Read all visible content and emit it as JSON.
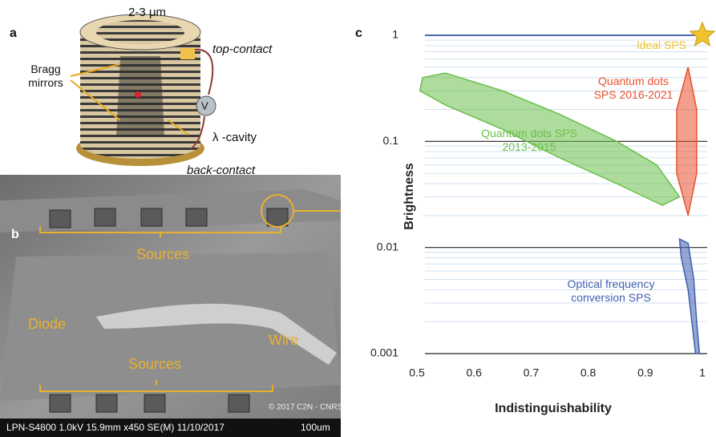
{
  "panels": {
    "a": {
      "letter": "a",
      "size": "2-3 μm",
      "top_contact": "top-contact",
      "bragg": "Bragg mirrors",
      "cavity": "λ -cavity",
      "back_contact": "back-contact",
      "voltage": "V"
    },
    "b": {
      "letter": "b",
      "sources_top": "Sources",
      "diode": "Diode",
      "wire": "Wire",
      "sources_bottom": "Sources",
      "copyright": "© 2017 C2N - CNRS",
      "info": "LPN-S4800 1.0kV 15.9mm x450 SE(M) 11/10/2017",
      "scale": "100um"
    }
  },
  "chart_data": {
    "type": "area",
    "panel_letter": "c",
    "x_label": "Indistinguishability",
    "y_label": "Brightness",
    "xlim": [
      0.5,
      1
    ],
    "xticks": [
      0.5,
      0.6,
      0.7,
      0.8,
      0.9,
      1
    ],
    "ylim": [
      0.001,
      1
    ],
    "yticks": [
      0.001,
      0.01,
      0.1,
      1
    ],
    "log_y": true,
    "grid": true,
    "minor_grid": true,
    "ideal": {
      "name": "Ideal SPS",
      "x": 1,
      "value": 1,
      "color": "#f2c12e",
      "line_color": "#4a6cb0"
    },
    "series": [
      {
        "name": "Quantum dots SPS 2013-2015",
        "color": "#6abf4b",
        "x": [
          0.51,
          0.55,
          0.65,
          0.75,
          0.85,
          0.92,
          0.96,
          0.93,
          0.85,
          0.75,
          0.65,
          0.55,
          0.505
        ],
        "values": [
          0.4,
          0.44,
          0.3,
          0.18,
          0.1,
          0.06,
          0.03,
          0.025,
          0.04,
          0.07,
          0.13,
          0.22,
          0.3
        ]
      },
      {
        "name": "Quantum dots SPS 2016-2021",
        "color": "#e8502e",
        "x": [
          0.975,
          0.99,
          0.99,
          0.975,
          0.955,
          0.955
        ],
        "values": [
          0.5,
          0.2,
          0.05,
          0.02,
          0.05,
          0.2
        ]
      },
      {
        "name": "Optical frequency conversion SPS",
        "color": "#3f5fae",
        "x": [
          0.96,
          0.975,
          0.985,
          0.99,
          0.995,
          0.988,
          0.975,
          0.963
        ],
        "values": [
          0.012,
          0.011,
          0.005,
          0.002,
          0.001,
          0.001,
          0.004,
          0.008
        ]
      }
    ]
  }
}
